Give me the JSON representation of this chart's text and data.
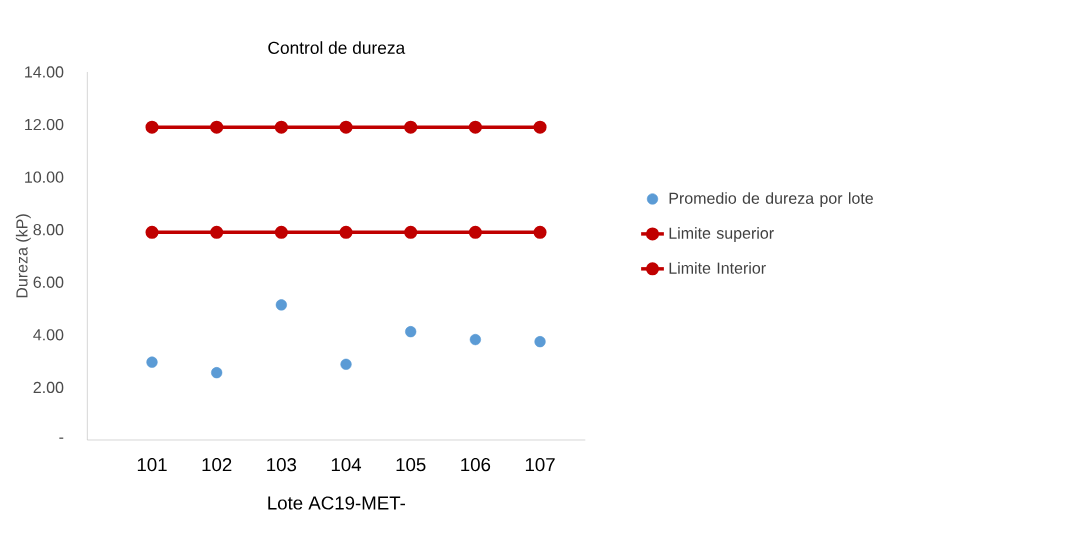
{
  "chart_data": {
    "type": "scatter",
    "title": "Control de dureza",
    "xlabel": "Lote AC19-MET-",
    "ylabel": "Dureza (kP)",
    "categories": [
      "101",
      "102",
      "103",
      "104",
      "105",
      "106",
      "107"
    ],
    "series": [
      {
        "name": "Promedio de dureza por lote",
        "color": "#5b9bd5",
        "values": [
          2.96,
          2.56,
          5.14,
          2.88,
          4.12,
          3.82,
          3.74
        ]
      },
      {
        "name": "Limite superior",
        "type": "line",
        "color": "#c00000",
        "values": [
          11.9,
          11.9,
          11.9,
          11.9,
          11.9,
          11.9,
          11.9
        ]
      },
      {
        "name": "Limite Interior",
        "type": "line",
        "color": "#c00000",
        "values": [
          7.9,
          7.9,
          7.9,
          7.9,
          7.9,
          7.9,
          7.9
        ]
      }
    ],
    "ylim": [
      0,
      14
    ],
    "yticks": [
      {
        "value": 0,
        "label": "-"
      },
      {
        "value": 2,
        "label": "2.00"
      },
      {
        "value": 4,
        "label": "4.00"
      },
      {
        "value": 6,
        "label": "6.00"
      },
      {
        "value": 8,
        "label": "8.00"
      },
      {
        "value": 10,
        "label": "10.00"
      },
      {
        "value": 12,
        "label": "12.00"
      },
      {
        "value": 14,
        "label": "14.00"
      }
    ],
    "marker": "circle",
    "line_style": "solid",
    "legend": "right",
    "grid": false
  }
}
